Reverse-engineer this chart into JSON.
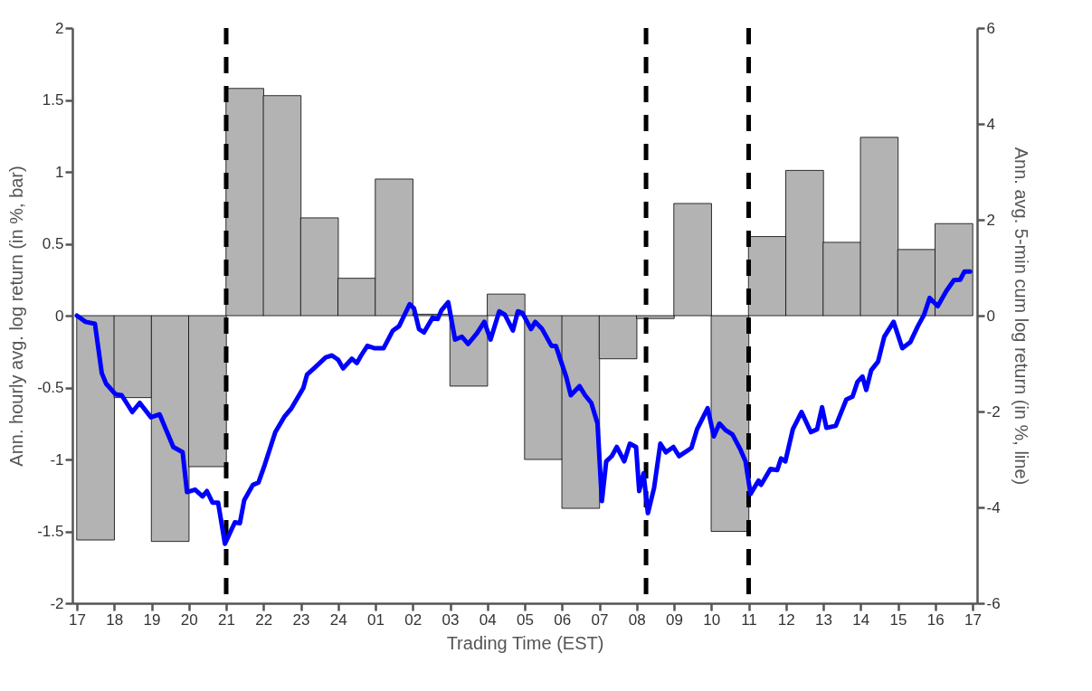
{
  "chart_data": {
    "type": "bar",
    "xlabel": "Trading Time (EST)",
    "ylabel": "Ann. hourly avg. log return (in %, bar)",
    "y2label": "Ann. avg. 5-min cum log return (in %, line)",
    "xlim": [
      "--01-01T17:00",
      "--01-02T17:00"
    ],
    "xticks": [
      {
        "value": "--01-01T17:00",
        "label": "17"
      },
      {
        "value": "--01-01T18:00",
        "label": "18"
      },
      {
        "value": "--01-01T19:00",
        "label": "19"
      },
      {
        "value": "--01-01T20:00",
        "label": "20"
      },
      {
        "value": "--01-01T21:00",
        "label": "21"
      },
      {
        "value": "--01-01T22:00",
        "label": "22"
      },
      {
        "value": "--01-01T23:00",
        "label": "23"
      },
      {
        "value": "--01-02T00:00",
        "label": "24"
      },
      {
        "value": "--01-02T01:00",
        "label": "01"
      },
      {
        "value": "--01-02T02:00",
        "label": "02"
      },
      {
        "value": "--01-02T03:00",
        "label": "03"
      },
      {
        "value": "--01-02T04:00",
        "label": "04"
      },
      {
        "value": "--01-02T05:00",
        "label": "05"
      },
      {
        "value": "--01-02T06:00",
        "label": "06"
      },
      {
        "value": "--01-02T07:00",
        "label": "07"
      },
      {
        "value": "--01-02T08:00",
        "label": "08"
      },
      {
        "value": "--01-02T09:00",
        "label": "09"
      },
      {
        "value": "--01-02T10:00",
        "label": "10"
      },
      {
        "value": "--01-02T11:00",
        "label": "11"
      },
      {
        "value": "--01-02T12:00",
        "label": "12"
      },
      {
        "value": "--01-02T13:00",
        "label": "13"
      },
      {
        "value": "--01-02T14:00",
        "label": "14"
      },
      {
        "value": "--01-02T15:00",
        "label": "15"
      },
      {
        "value": "--01-02T16:00",
        "label": "16"
      },
      {
        "value": "--01-02T17:00",
        "label": "17"
      }
    ],
    "ylim": [
      -2,
      2
    ],
    "yticks": [
      -2,
      -1.5,
      -1,
      -0.5,
      0,
      0.5,
      1,
      1.5,
      2
    ],
    "y2lim": [
      -6,
      6
    ],
    "y2ticks": [
      -6,
      -4,
      -2,
      0,
      2,
      4,
      6
    ],
    "grid": false,
    "series": [
      {
        "color": "#b3b3b3",
        "x": [
          "--01-01T17:30",
          "--01-01T18:30",
          "--01-01T19:30",
          "--01-01T20:30",
          "--01-01T21:30",
          "--01-01T22:30",
          "--01-01T23:30",
          "--01-02T00:30",
          "--01-02T01:30",
          "--01-02T02:30",
          "--01-02T03:30",
          "--01-02T04:30",
          "--01-02T05:30",
          "--01-02T06:30",
          "--01-02T07:30",
          "--01-02T08:30",
          "--01-02T09:30",
          "--01-02T10:30",
          "--01-02T11:30",
          "--01-02T12:30",
          "--01-02T13:30",
          "--01-02T14:30",
          "--01-02T15:30",
          "--01-02T16:30"
        ],
        "values": [
          -1.56,
          -0.57,
          -1.57,
          -1.05,
          1.58,
          1.53,
          0.68,
          0.26,
          0.95,
          0.01,
          -0.49,
          0.15,
          -1.0,
          -1.34,
          -0.3,
          -0.02,
          0.78,
          -1.5,
          0.55,
          1.01,
          0.51,
          1.24,
          0.46,
          0.64
        ]
      },
      {
        "type": "line",
        "axis": "y2",
        "color": "#0000ff",
        "x": [
          "--01-01T17:00",
          "--01-01T17:14",
          "--01-01T17:29",
          "--01-01T17:40",
          "--01-01T17:47",
          "--01-01T18:02",
          "--01-01T18:12",
          "--01-01T18:29",
          "--01-01T18:41",
          "--01-01T18:59",
          "--01-01T19:13",
          "--01-01T19:35",
          "--01-01T19:50",
          "--01-01T19:57",
          "--01-01T20:10",
          "--01-01T20:22",
          "--01-01T20:29",
          "--01-01T20:38",
          "--01-01T20:47",
          "--01-01T20:58",
          "--01-01T21:14",
          "--01-01T21:22",
          "--01-01T21:29",
          "--01-01T21:43",
          "--01-01T21:52",
          "--01-01T22:02",
          "--01-01T22:19",
          "--01-01T22:34",
          "--01-01T22:45",
          "--01-01T23:04",
          "--01-01T23:10",
          "--01-01T23:21",
          "--01-01T23:40",
          "--01-01T23:50",
          "--01-02T00:00",
          "--01-02T00:08",
          "--01-02T00:22",
          "--01-02T00:30",
          "--01-02T00:37",
          "--01-02T00:47",
          "--01-02T00:59",
          "--01-02T01:13",
          "--01-02T01:28",
          "--01-02T01:38",
          "--01-02T01:55",
          "--01-02T02:02",
          "--01-02T02:10",
          "--01-02T02:18",
          "--01-02T02:32",
          "--01-02T02:40",
          "--01-02T02:46",
          "--01-02T02:57",
          "--01-02T03:08",
          "--01-02T03:19",
          "--01-02T03:29",
          "--01-02T03:43",
          "--01-02T03:55",
          "--01-02T04:05",
          "--01-02T04:19",
          "--01-02T04:28",
          "--01-02T04:41",
          "--01-02T04:49",
          "--01-02T04:56",
          "--01-02T05:10",
          "--01-02T05:17",
          "--01-02T05:28",
          "--01-02T05:43",
          "--01-02T05:50",
          "--01-02T06:07",
          "--01-02T06:14",
          "--01-02T06:28",
          "--01-02T06:37",
          "--01-02T06:47",
          "--01-02T06:57",
          "--01-02T07:04",
          "--01-02T07:11",
          "--01-02T07:20",
          "--01-02T07:28",
          "--01-02T07:40",
          "--01-02T07:49",
          "--01-02T07:59",
          "--01-02T08:04",
          "--01-02T08:11",
          "--01-02T08:18",
          "--01-02T08:28",
          "--01-02T08:38",
          "--01-02T08:47",
          "--01-02T08:59",
          "--01-02T09:08",
          "--01-02T09:28",
          "--01-02T09:37",
          "--01-02T09:54",
          "--01-02T10:04",
          "--01-02T10:13",
          "--01-02T10:23",
          "--01-02T10:34",
          "--01-02T10:47",
          "--01-02T10:55",
          "--01-02T11:03",
          "--01-02T11:16",
          "--01-02T11:20",
          "--01-02T11:35",
          "--01-02T11:46",
          "--01-02T11:52",
          "--01-02T11:59",
          "--01-02T12:11",
          "--01-02T12:25",
          "--01-02T12:40",
          "--01-02T12:50",
          "--01-02T12:58",
          "--01-02T13:05",
          "--01-02T13:20",
          "--01-02T13:37",
          "--01-02T13:47",
          "--01-02T13:55",
          "--01-02T14:03",
          "--01-02T14:09",
          "--01-02T14:17",
          "--01-02T14:28",
          "--01-02T14:38",
          "--01-02T14:53",
          "--01-02T15:07",
          "--01-02T15:20",
          "--01-02T15:32",
          "--01-02T15:42",
          "--01-02T15:51",
          "--01-02T16:04",
          "--01-02T16:18",
          "--01-02T16:30",
          "--01-02T16:40",
          "--01-02T16:47",
          "--01-02T16:56"
        ],
        "values": [
          0,
          -0.13,
          -0.17,
          -1.2,
          -1.42,
          -1.64,
          -1.66,
          -2.01,
          -1.82,
          -2.12,
          -2.06,
          -2.74,
          -2.85,
          -3.68,
          -3.63,
          -3.77,
          -3.66,
          -3.9,
          -3.9,
          -4.76,
          -4.31,
          -4.33,
          -3.85,
          -3.53,
          -3.48,
          -3.11,
          -2.43,
          -2.1,
          -1.93,
          -1.51,
          -1.23,
          -1.1,
          -0.87,
          -0.83,
          -0.92,
          -1.1,
          -0.9,
          -0.99,
          -0.83,
          -0.63,
          -0.68,
          -0.68,
          -0.31,
          -0.22,
          0.24,
          0.15,
          -0.28,
          -0.35,
          -0.04,
          -0.07,
          0.11,
          0.28,
          -0.5,
          -0.44,
          -0.59,
          -0.37,
          -0.13,
          -0.5,
          0.09,
          0.02,
          -0.31,
          0.09,
          0.06,
          -0.28,
          -0.13,
          -0.28,
          -0.63,
          -0.63,
          -1.29,
          -1.66,
          -1.47,
          -1.66,
          -1.82,
          -2.25,
          -3.87,
          -3.04,
          -2.93,
          -2.74,
          -3.04,
          -2.67,
          -2.74,
          -3.66,
          -3.29,
          -4.12,
          -3.59,
          -2.67,
          -2.85,
          -2.74,
          -2.93,
          -2.76,
          -2.37,
          -1.93,
          -2.52,
          -2.25,
          -2.39,
          -2.48,
          -2.8,
          -3.04,
          -3.72,
          -3.44,
          -3.53,
          -3.2,
          -3.22,
          -2.98,
          -3.04,
          -2.37,
          -2.01,
          -2.43,
          -2.37,
          -1.91,
          -2.34,
          -2.3,
          -1.75,
          -1.69,
          -1.38,
          -1.27,
          -1.55,
          -1.14,
          -0.96,
          -0.44,
          -0.13,
          -0.68,
          -0.55,
          -0.22,
          0.02,
          0.37,
          0.2,
          0.52,
          0.74,
          0.75,
          0.92,
          0.92
        ]
      }
    ],
    "ref_lines": [
      {
        "axis": "x",
        "value": "--01-01T21:00",
        "color": "#000000",
        "line_style": "dashed"
      },
      {
        "axis": "x",
        "value": "--01-02T08:15",
        "color": "#000000",
        "line_style": "dashed"
      },
      {
        "axis": "x",
        "value": "--01-02T11:00",
        "color": "#000000",
        "line_style": "dashed"
      }
    ]
  }
}
